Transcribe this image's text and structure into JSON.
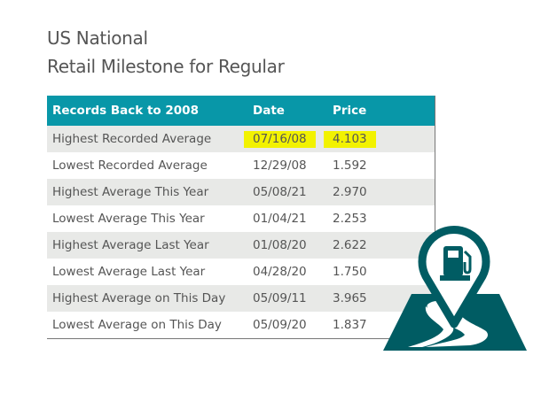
{
  "title_line1": "US National",
  "title_line2": "Retail Milestone for Regular",
  "table": {
    "headers": [
      "Records Back to 2008",
      "Date",
      "Price"
    ],
    "rows": [
      {
        "label": "Highest Recorded Average",
        "date": "07/16/08",
        "price": "4.103",
        "highlighted": true
      },
      {
        "label": "Lowest Recorded Average",
        "date": "12/29/08",
        "price": "1.592"
      },
      {
        "label": "Highest Average This Year",
        "date": "05/08/21",
        "price": "2.970"
      },
      {
        "label": "Lowest Average This Year",
        "date": "01/04/21",
        "price": "2.253"
      },
      {
        "label": "Highest Average Last Year",
        "date": "01/08/20",
        "price": "2.622"
      },
      {
        "label": "Lowest Average Last Year",
        "date": "04/28/20",
        "price": "1.750"
      },
      {
        "label": "Highest Average on This Day",
        "date": "05/09/11",
        "price": "3.965"
      },
      {
        "label": "Lowest Average on This Day",
        "date": "05/09/20",
        "price": "1.837"
      }
    ]
  },
  "colors": {
    "header": "#0897a8",
    "icon": "#005c63",
    "highlight": "#f2f200"
  },
  "icon": "gas-station-map-pin-icon"
}
